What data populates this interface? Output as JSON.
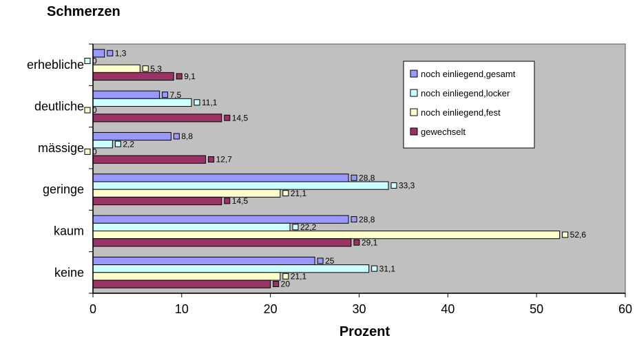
{
  "chart_data": {
    "type": "bar",
    "orientation": "horizontal",
    "title": "Schmerzen",
    "xlabel": "Prozent",
    "ylabel": "",
    "xlim": [
      0,
      60
    ],
    "x_ticks": [
      0,
      10,
      20,
      30,
      40,
      50,
      60
    ],
    "categories": [
      "erhebliche",
      "deutliche",
      "mässige",
      "geringe",
      "kaum",
      "keine"
    ],
    "series": [
      {
        "name": "noch einliegend,gesamt",
        "color": "#9999ff",
        "values": [
          1.3,
          7.5,
          8.8,
          28.8,
          28.8,
          25
        ]
      },
      {
        "name": "noch einliegend,locker",
        "color": "#ccffff",
        "values": [
          0,
          11.1,
          2.2,
          33.3,
          22.2,
          31.1
        ]
      },
      {
        "name": "noch einliegend,fest",
        "color": "#ffffcc",
        "values": [
          5.3,
          0,
          0,
          21.1,
          52.6,
          21.1
        ]
      },
      {
        "name": "gewechselt",
        "color": "#993366",
        "values": [
          9.1,
          14.5,
          12.7,
          14.5,
          29.1,
          20
        ]
      }
    ],
    "data_labels": [
      [
        "1,3",
        "7,5",
        "8,8",
        "28,8",
        "28,8",
        "25"
      ],
      [
        "0",
        "11,1",
        "2,2",
        "33,3",
        "22,2",
        "31,1"
      ],
      [
        "5,3",
        "0",
        "0",
        "21,1",
        "52,6",
        "21,1"
      ],
      [
        "9,1",
        "14,5",
        "12,7",
        "14,5",
        "29,1",
        "20"
      ]
    ],
    "plot_background": "#c0c0c0",
    "grid": false,
    "legend_position": "top-right"
  }
}
